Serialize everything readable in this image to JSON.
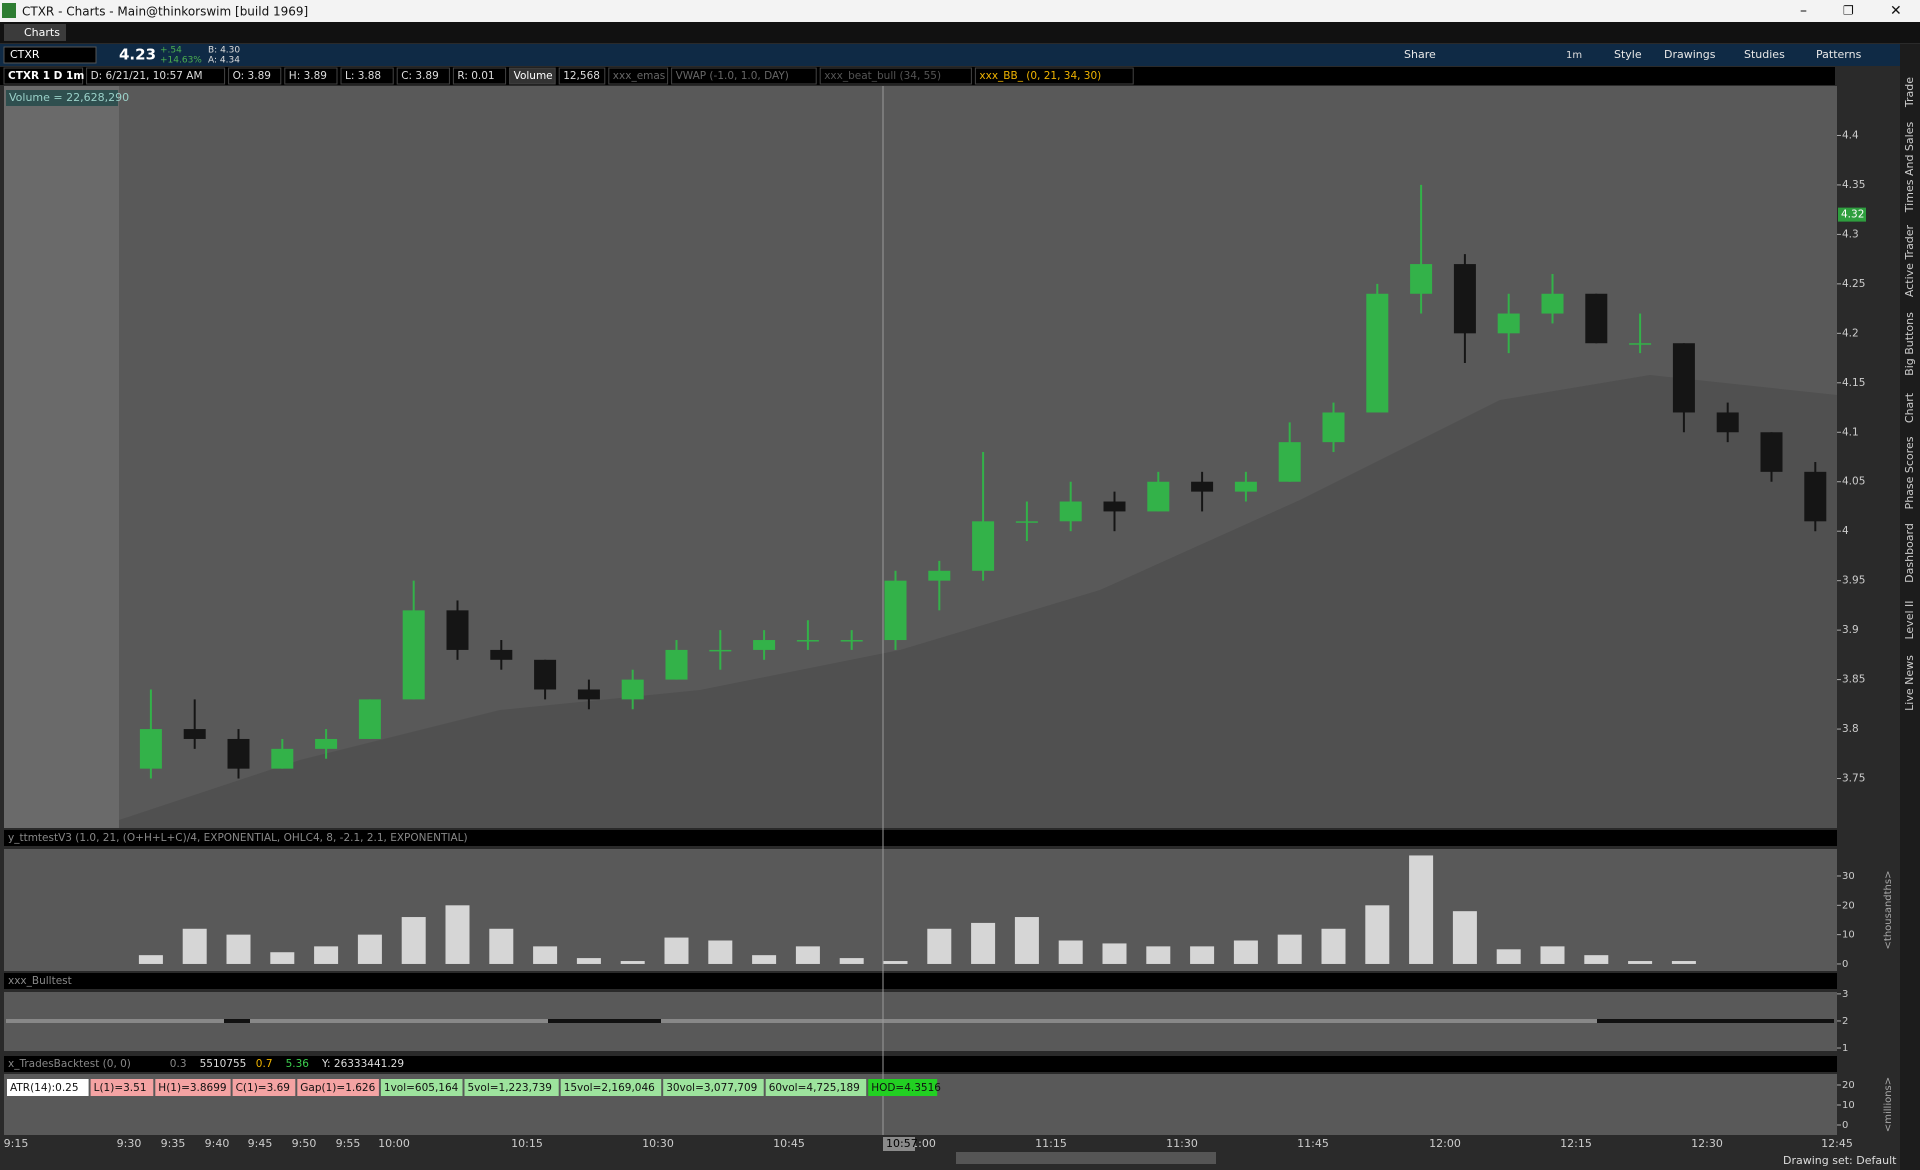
{
  "window": {
    "title": "CTXR - Charts -  Main@thinkorswim [build 1969]",
    "tab": "Charts"
  },
  "toolbar": {
    "symbol": "CTXR",
    "last": "4.23",
    "change": "+.54",
    "change_pct": "+14.63%",
    "bid": "B: 4.30",
    "ask": "A: 4.34",
    "timeframe": "1m",
    "buttons": [
      "Share",
      "Style",
      "Drawings",
      "Studies",
      "Patterns"
    ]
  },
  "info_bar": [
    "CTXR 1 D 1m",
    "D: 6/21/21, 10:57 AM",
    "O: 3.89",
    "H: 3.89",
    "L: 3.88",
    "C: 3.89",
    "R: 0.01",
    "Volume",
    "12,568",
    "xxx_emas",
    "VWAP (-1.0, 1.0, DAY)",
    "xxx_beat_bull (34, 55)",
    "xxx_BB_ (0, 21, 34, 30)"
  ],
  "side_tabs": [
    "Trade",
    "Times And Sales",
    "Active Trader",
    "Big Buttons",
    "Chart",
    "Phase Scores",
    "Dashboard",
    "Level II",
    "Live News"
  ],
  "chart_data": {
    "type": "candlestick",
    "annotation": "Volume = 22,628,290",
    "open": [
      3.76,
      3.8,
      3.79,
      3.76,
      3.78,
      3.79,
      3.83,
      3.92,
      3.88,
      3.87,
      3.84,
      3.83,
      3.85,
      3.88,
      3.88,
      3.89,
      3.89,
      3.89,
      3.95,
      3.96,
      4.01,
      4.01,
      4.03,
      4.02,
      4.05,
      4.04,
      4.05,
      4.09,
      4.12,
      4.24,
      4.27,
      4.2,
      4.22,
      4.24,
      4.19,
      4.19,
      4.12,
      4.1,
      4.06
    ],
    "high": [
      3.84,
      3.83,
      3.8,
      3.79,
      3.8,
      3.83,
      3.95,
      3.93,
      3.89,
      3.87,
      3.85,
      3.86,
      3.89,
      3.9,
      3.9,
      3.91,
      3.9,
      3.96,
      3.97,
      4.08,
      4.03,
      4.05,
      4.04,
      4.06,
      4.06,
      4.06,
      4.11,
      4.13,
      4.25,
      4.35,
      4.28,
      4.24,
      4.26,
      4.24,
      4.22,
      4.19,
      4.13,
      4.1,
      4.07
    ],
    "low": [
      3.75,
      3.78,
      3.75,
      3.76,
      3.77,
      3.79,
      3.83,
      3.87,
      3.86,
      3.83,
      3.82,
      3.82,
      3.85,
      3.86,
      3.87,
      3.88,
      3.88,
      3.88,
      3.92,
      3.95,
      3.99,
      4.0,
      4.0,
      4.02,
      4.02,
      4.03,
      4.05,
      4.08,
      4.12,
      4.22,
      4.17,
      4.18,
      4.21,
      4.19,
      4.18,
      4.1,
      4.09,
      4.05,
      4.0
    ],
    "close": [
      3.8,
      3.79,
      3.76,
      3.78,
      3.79,
      3.83,
      3.92,
      3.88,
      3.87,
      3.84,
      3.83,
      3.85,
      3.88,
      3.88,
      3.89,
      3.89,
      3.89,
      3.95,
      3.96,
      4.01,
      4.01,
      4.03,
      4.02,
      4.05,
      4.04,
      4.05,
      4.09,
      4.12,
      4.24,
      4.27,
      4.2,
      4.22,
      4.24,
      4.19,
      4.19,
      4.12,
      4.1,
      4.06,
      4.01
    ],
    "ylim": [
      3.7,
      4.45
    ],
    "yticks": [
      3.75,
      3.8,
      3.85,
      3.9,
      3.95,
      4,
      4.05,
      4.1,
      4.15,
      4.2,
      4.25,
      4.3,
      4.35,
      4.4
    ],
    "last_price_tag": 4.32,
    "x_labels": [
      "9:15",
      "9:30",
      "9:35",
      "9:40",
      "9:45",
      "9:50",
      "9:55",
      "10:00",
      "10:15",
      "10:30",
      "10:45",
      "11:00",
      "11:15",
      "11:30",
      "11:45",
      "12:00",
      "12:15",
      "12:30",
      "12:45"
    ],
    "cursor_time": "10:57"
  },
  "studies": [
    {
      "label": "y_ttmtestV3 (1.0, 21, (O+H+L+C)/4, EXPONENTIAL, OHLC4, 8, -2.1, 2.1, EXPONENTIAL)",
      "axis_label": "<thousandths>",
      "values": [
        3,
        12,
        10,
        4,
        6,
        10,
        16,
        20,
        12,
        6,
        2,
        1,
        9,
        8,
        3,
        6,
        2,
        1,
        12,
        14,
        16,
        8,
        7,
        6,
        6,
        8,
        10,
        12,
        20,
        37,
        18,
        5,
        6,
        3,
        1,
        1,
        0,
        0,
        0
      ],
      "ylim": [
        -2.4,
        39.2
      ],
      "yticks": [
        0,
        10,
        20,
        30
      ]
    },
    {
      "label": "xxx_Bulltest",
      "ylim": [
        0.89,
        3.07
      ],
      "yticks": [
        1,
        2,
        3
      ]
    },
    {
      "label": "x_TradesBacktest (0, 0)",
      "readouts": [
        "0.3",
        "5510755",
        "0.7",
        "5.36",
        "Y: 26333441.29"
      ],
      "badges": [
        "ATR(14):0.25",
        "L(1)=3.51",
        "H(1)=3.8699",
        "C(1)=3.69",
        "Gap(1)=1.626",
        "1vol=605,164",
        "5vol=1,223,739",
        "15vol=2,169,046",
        "30vol=3,077,709",
        "60vol=4,725,189",
        "HOD=4.3516"
      ],
      "axis_label": "<millions>",
      "ylim": [
        -5,
        25.5
      ],
      "yticks": [
        0,
        10,
        20
      ]
    }
  ],
  "status": {
    "drawing_set": "Drawing set: Default"
  }
}
